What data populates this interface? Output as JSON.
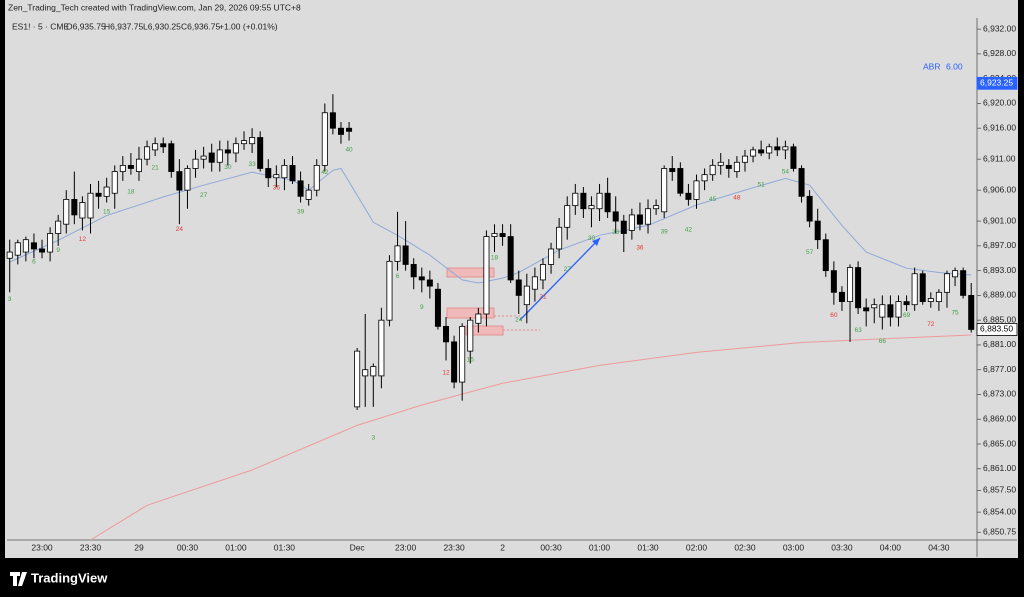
{
  "header": {
    "credit": "Zen_Trading_Tech created with TradingView.com, Jan 29, 2026 09:55 UTC+8",
    "symbol": "ES1! · 5 · CME",
    "ohlc": [
      "O6,935.75",
      "H6,937.75",
      "L6,930.25",
      "C6,936.75",
      "+1.00 (+0.01%)"
    ],
    "indicator": {
      "name": "ABR",
      "value": "6.00"
    }
  },
  "footer": {
    "brand": "TradingView"
  },
  "chart_data": {
    "type": "candlestick",
    "categories": [
      null,
      null,
      null,
      null,
      "23:00",
      null,
      null,
      null,
      null,
      null,
      "23:30",
      null,
      null,
      null,
      null,
      null,
      "29",
      null,
      null,
      null,
      null,
      null,
      "00:30",
      null,
      null,
      null,
      null,
      null,
      "01:00",
      null,
      null,
      null,
      null,
      null,
      "01:30",
      null,
      null,
      null,
      null,
      null,
      null,
      null,
      null,
      "Dec",
      null,
      null,
      null,
      null,
      null,
      "23:00",
      null,
      null,
      null,
      null,
      null,
      "23:30",
      null,
      null,
      null,
      null,
      null,
      "2",
      null,
      null,
      null,
      null,
      null,
      "00:30",
      null,
      null,
      null,
      null,
      null,
      "01:00",
      null,
      null,
      null,
      null,
      null,
      "01:30",
      null,
      null,
      null,
      null,
      null,
      "02:00",
      null,
      null,
      null,
      null,
      null,
      "02:30",
      null,
      null,
      null,
      null,
      null,
      "03:00",
      null,
      null,
      null,
      null,
      null,
      "03:30",
      null,
      null,
      null,
      null,
      null,
      "04:00",
      null,
      null,
      null,
      null,
      null,
      "04:30",
      null,
      null,
      null,
      null
    ],
    "open": [
      6895,
      6895.5,
      6896,
      6897.5,
      6896.5,
      6896,
      6899,
      6900.5,
      6904.5,
      6901.5,
      6901.5,
      6905.5,
      6905,
      6905.5,
      6909,
      6910,
      6909,
      6911,
      6912.5,
      6913.5,
      6913.5,
      6909,
      6906,
      6909.5,
      6911,
      6912,
      6910.5,
      6912.5,
      6912,
      6913.5,
      6913.5,
      6914.5,
      6909.5,
      6908,
      6908,
      6910,
      6907.5,
      6904.5,
      6906,
      6910,
      6918.5,
      6916,
      6916,
      6871,
      6876,
      6876,
      6876,
      6885,
      6894.5,
      6897,
      6894,
      6892,
      6891.5,
      6890,
      6884,
      6881.5,
      6875,
      6880,
      6884.5,
      6886,
      6898.5,
      6899,
      6898.5,
      6891.5,
      6887.5,
      6890,
      6891.5,
      6894,
      6896.5,
      6900,
      6903.5,
      6905.5,
      6903,
      6903,
      6905.5,
      6902.5,
      6901,
      6899.5,
      6902,
      6900.5,
      6903,
      6902.5,
      6909.5,
      6909.5,
      6905.5,
      6904.5,
      6907.5,
      6908.5,
      6910,
      6910,
      6909,
      6910.5,
      6911.5,
      6912.5,
      6912,
      6913,
      6912.5,
      6913,
      6909.5,
      6905,
      6901,
      6898,
      6893,
      6889.5,
      6888,
      6893.5,
      6887,
      6887,
      6885.5,
      6887.5,
      6885.5,
      6888,
      6887.5,
      6892.5,
      6888,
      6888,
      6889.5,
      6892,
      6893,
      6889
    ],
    "high": [
      6898,
      6898,
      6898.5,
      6899,
      6898,
      6900,
      6902,
      6906,
      6909,
      6905,
      6907,
      6907.5,
      6908,
      6910,
      6911.5,
      6912,
      6913,
      6914,
      6914.5,
      6914.5,
      6914,
      6911,
      6910,
      6912.5,
      6913,
      6913.5,
      6914,
      6914,
      6914.5,
      6915.5,
      6916,
      6915.5,
      6911,
      6910,
      6911,
      6911.5,
      6909,
      6907,
      6911,
      6920,
      6921.5,
      6917,
      6917,
      6880.5,
      6886,
      6878,
      6887,
      6895.5,
      6902.5,
      6901,
      6895,
      6893.5,
      6893,
      6891,
      6885.5,
      6882.5,
      6884.5,
      6885.5,
      6887,
      6899.5,
      6900.5,
      6900.5,
      6900.5,
      6893,
      6892.5,
      6893.5,
      6895,
      6897.5,
      6901.5,
      6905,
      6907,
      6906.5,
      6905,
      6907,
      6908,
      6905,
      6902,
      6903,
      6904,
      6904.5,
      6904.5,
      6910,
      6911.5,
      6910.5,
      6907,
      6908.5,
      6909.5,
      6911,
      6912,
      6911,
      6911.5,
      6912.5,
      6913,
      6914,
      6913.5,
      6914.5,
      6914,
      6913.5,
      6910,
      6906,
      6903,
      6899,
      6894.5,
      6890.5,
      6894,
      6894.5,
      6888.5,
      6888.5,
      6889,
      6889,
      6889,
      6889,
      6893.5,
      6893,
      6889.5,
      6890,
      6893,
      6893.5,
      6893.5,
      6891
    ],
    "low": [
      6889.5,
      6894,
      6894.5,
      6895,
      6895,
      6894.5,
      6897,
      6899,
      6900.5,
      6899.5,
      6899,
      6903,
      6904,
      6903,
      6907.5,
      6908.5,
      6907.5,
      6910,
      6911.5,
      6912,
      6908,
      6900.5,
      6903,
      6908,
      6909.5,
      6909,
      6909,
      6910,
      6910.5,
      6912.5,
      6912,
      6909,
      6906.5,
      6906.5,
      6906,
      6907,
      6904,
      6903.5,
      6905,
      6909,
      6915,
      6913.5,
      6914,
      6870.5,
      6871,
      6871,
      6874,
      6884,
      6893,
      6893,
      6890,
      6889.5,
      6888.5,
      6883.5,
      6878.5,
      6874,
      6872,
      6878,
      6883,
      6884,
      6896,
      6897,
      6891,
      6886,
      6884.5,
      6888,
      6890,
      6892.5,
      6895,
      6898,
      6902,
      6901.5,
      6900,
      6901,
      6901.5,
      6899,
      6896,
      6898,
      6899.5,
      6899,
      6902,
      6901.5,
      6907.5,
      6905,
      6903.5,
      6903,
      6906,
      6907.5,
      6908.5,
      6908,
      6908,
      6909,
      6910.5,
      6911.5,
      6911,
      6911.5,
      6911,
      6909,
      6904,
      6900,
      6896.5,
      6892,
      6887.5,
      6886.5,
      6881.5,
      6886,
      6884,
      6884.5,
      6883.5,
      6884,
      6884,
      6886.5,
      6886.5,
      6887.5,
      6887,
      6886.5,
      6887,
      6890.5,
      6888.5,
      6883
    ],
    "close": [
      6896,
      6897.5,
      6898,
      6896.5,
      6896,
      6899,
      6901,
      6904.5,
      6902,
      6904,
      6905.5,
      6905,
      6906.5,
      6909,
      6910,
      6909.5,
      6911,
      6913,
      6913.5,
      6913,
      6909,
      6906,
      6909.5,
      6911,
      6911.5,
      6910.5,
      6912.5,
      6912,
      6913.5,
      6914,
      6914.5,
      6909.5,
      6908,
      6908.5,
      6910,
      6907.5,
      6905,
      6906,
      6910,
      6918.5,
      6916,
      6915,
      6915.5,
      6880,
      6877,
      6877.5,
      6885,
      6894.5,
      6897,
      6894,
      6892,
      6891.5,
      6890.5,
      6884,
      6881.5,
      6875,
      6884,
      6885,
      6886,
      6898.5,
      6899,
      6898.5,
      6891.5,
      6889,
      6890.5,
      6892,
      6894,
      6896.5,
      6900,
      6903.5,
      6905.5,
      6903,
      6903.5,
      6905.5,
      6902.5,
      6901,
      6899,
      6902,
      6900.5,
      6903,
      6903.5,
      6909.5,
      6909,
      6905.5,
      6904.5,
      6907.5,
      6908.5,
      6910,
      6910.5,
      6909.5,
      6910.5,
      6911.5,
      6912.5,
      6912,
      6913,
      6912.5,
      6913,
      6909.5,
      6905,
      6901,
      6898,
      6893,
      6889.5,
      6888,
      6893.5,
      6887,
      6886.5,
      6887.5,
      6887.5,
      6885.5,
      6888,
      6887.5,
      6892.5,
      6888,
      6888.5,
      6889.5,
      6892.5,
      6893,
      6889,
      6883.5
    ],
    "up_color": "#ffffff",
    "down_color": "#000000",
    "lines": [
      {
        "color": "#8fa9d9",
        "x": [
          0,
          6,
          12,
          19,
          24,
          30,
          35,
          37,
          40,
          41,
          43,
          45,
          48,
          52,
          56,
          58,
          61,
          63,
          68,
          73,
          79,
          85,
          91,
          96,
          99,
          103,
          106,
          111,
          115,
          119
        ],
        "values": [
          6894.4,
          6897.9,
          6901.9,
          6904.9,
          6906.8,
          6908.9,
          6907.6,
          6906,
          6909.2,
          6909.5,
          6905.2,
          6900.8,
          6898.7,
          6895.5,
          6891.5,
          6891,
          6891.8,
          6892.7,
          6896.3,
          6898.7,
          6900.3,
          6903.6,
          6906,
          6907.9,
          6906.8,
          6900.3,
          6896,
          6893.4,
          6892.7,
          6892.3
        ]
      },
      {
        "color": "#ef9a9a",
        "x": [
          10,
          17,
          30,
          43,
          51,
          61,
          73,
          85,
          98,
          110,
          119
        ],
        "values": [
          6849.5,
          6855.1,
          6860.8,
          6868,
          6871.3,
          6874.8,
          6877.7,
          6879.8,
          6881.4,
          6882.1,
          6882.6
        ]
      }
    ],
    "bar_labels": [
      {
        "text": "3",
        "index": 0,
        "price": 6888.4,
        "color": "#43a047"
      },
      {
        "text": "6",
        "index": 3,
        "price": 6894.4,
        "color": "#43a047"
      },
      {
        "text": "9",
        "index": 6,
        "price": 6896.3,
        "color": "#43a047"
      },
      {
        "text": "12",
        "index": 9,
        "price": 6898.1,
        "color": "#e53935"
      },
      {
        "text": "15",
        "index": 12,
        "price": 6902.5,
        "color": "#43a047"
      },
      {
        "text": "18",
        "index": 15,
        "price": 6905.7,
        "color": "#43a047"
      },
      {
        "text": "21",
        "index": 18,
        "price": 6909.6,
        "color": "#43a047"
      },
      {
        "text": "24",
        "index": 21,
        "price": 6899.7,
        "color": "#e53935"
      },
      {
        "text": "27",
        "index": 24,
        "price": 6905.2,
        "color": "#43a047"
      },
      {
        "text": "30",
        "index": 27,
        "price": 6909.7,
        "color": "#43a047"
      },
      {
        "text": "33",
        "index": 30,
        "price": 6910.2,
        "color": "#43a047"
      },
      {
        "text": "36",
        "index": 33,
        "price": 6906.4,
        "color": "#e53935"
      },
      {
        "text": "39",
        "index": 36,
        "price": 6902.5,
        "color": "#43a047"
      },
      {
        "text": "40",
        "index": 42,
        "price": 6912.5,
        "color": "#43a047"
      },
      {
        "text": "42",
        "index": 39,
        "price": 6908.9,
        "color": "#43a047"
      },
      {
        "text": "3",
        "index": 45,
        "price": 6866,
        "color": "#43a047"
      },
      {
        "text": "6",
        "index": 48,
        "price": 6892.1,
        "color": "#43a047"
      },
      {
        "text": "9",
        "index": 51,
        "price": 6887.1,
        "color": "#43a047"
      },
      {
        "text": "12",
        "index": 54,
        "price": 6876.5,
        "color": "#e53935"
      },
      {
        "text": "15",
        "index": 57,
        "price": 6878.6,
        "color": "#43a047"
      },
      {
        "text": "18",
        "index": 60,
        "price": 6895.1,
        "color": "#43a047"
      },
      {
        "text": "21",
        "index": 66,
        "price": 6888.8,
        "color": "#e53935"
      },
      {
        "text": "24",
        "index": 63,
        "price": 6885.1,
        "color": "#43a047"
      },
      {
        "text": "27",
        "index": 69,
        "price": 6893.2,
        "color": "#43a047"
      },
      {
        "text": "30",
        "index": 72,
        "price": 6898.2,
        "color": "#43a047"
      },
      {
        "text": "33",
        "index": 75,
        "price": 6899.2,
        "color": "#43a047"
      },
      {
        "text": "36",
        "index": 78,
        "price": 6896.7,
        "color": "#e53935"
      },
      {
        "text": "39",
        "index": 81,
        "price": 6899.3,
        "color": "#43a047"
      },
      {
        "text": "42",
        "index": 84,
        "price": 6899.6,
        "color": "#43a047"
      },
      {
        "text": "45",
        "index": 87,
        "price": 6904.5,
        "color": "#43a047"
      },
      {
        "text": "48",
        "index": 90,
        "price": 6904.8,
        "color": "#e53935"
      },
      {
        "text": "51",
        "index": 93,
        "price": 6906.9,
        "color": "#43a047"
      },
      {
        "text": "54",
        "index": 96,
        "price": 6909,
        "color": "#43a047"
      },
      {
        "text": "57",
        "index": 99,
        "price": 6896,
        "color": "#43a047"
      },
      {
        "text": "60",
        "index": 102,
        "price": 6885.8,
        "color": "#e53935"
      },
      {
        "text": "63",
        "index": 105,
        "price": 6883.4,
        "color": "#43a047"
      },
      {
        "text": "66",
        "index": 108,
        "price": 6881.6,
        "color": "#43a047"
      },
      {
        "text": "69",
        "index": 111,
        "price": 6885.8,
        "color": "#43a047"
      },
      {
        "text": "72",
        "index": 114,
        "price": 6884.3,
        "color": "#e53935"
      },
      {
        "text": "75",
        "index": 117,
        "price": 6886.2,
        "color": "#43a047"
      }
    ],
    "price_markers": [
      {
        "value": 6923.25,
        "label": "6,923.25",
        "color": "#2962ff"
      },
      {
        "value": 6883.5,
        "label": "6,883.50",
        "color": "#ffffff"
      }
    ],
    "ylim": [
      6849.5,
      6933.8
    ],
    "yticks": [
      {
        "value": 6932,
        "label": "6,932.00"
      },
      {
        "value": 6928,
        "label": "6,928.00"
      },
      {
        "value": 6924,
        "label": "6,924.00"
      },
      {
        "value": 6920,
        "label": "6,920.00"
      },
      {
        "value": 6916,
        "label": "6,916.00"
      },
      {
        "value": 6911,
        "label": "6,911.00"
      },
      {
        "value": 6906,
        "label": "6,906.00"
      },
      {
        "value": 6901,
        "label": "6,901.00"
      },
      {
        "value": 6897,
        "label": "6,897.00"
      },
      {
        "value": 6893,
        "label": "6,893.00"
      },
      {
        "value": 6889,
        "label": "6,889.00"
      },
      {
        "value": 6885,
        "label": "6,885.00"
      },
      {
        "value": 6881,
        "label": "6,881.00"
      },
      {
        "value": 6877,
        "label": "6,877.00"
      },
      {
        "value": 6873,
        "label": "6,873.00"
      },
      {
        "value": 6869,
        "label": "6,869.00"
      },
      {
        "value": 6865,
        "label": "6,865.00"
      },
      {
        "value": 6861,
        "label": "6,861.00"
      },
      {
        "value": 6857.5,
        "label": "6,857.50"
      },
      {
        "value": 6854,
        "label": "6,854.00"
      },
      {
        "value": 6850.75,
        "label": "6,850.75"
      }
    ],
    "grid": false
  }
}
